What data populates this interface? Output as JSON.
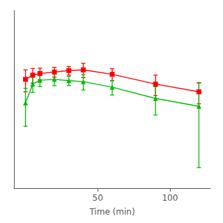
{
  "chart_data": {
    "type": "line",
    "xlabel": "Time (min)",
    "x": [
      0,
      5,
      10,
      20,
      30,
      40,
      60,
      90,
      120
    ],
    "series": [
      {
        "color": "#ff0000",
        "marker": "square",
        "values": [
          4.5,
          5.0,
          5.2,
          5.4,
          5.6,
          5.7,
          5.1,
          4.0,
          3.3
        ],
        "errors": [
          1.2,
          0.9,
          0.75,
          0.65,
          0.6,
          1.0,
          0.75,
          1.0,
          0.85
        ]
      },
      {
        "color": "#00bb00",
        "marker": "triangle",
        "values": [
          2.5,
          4.0,
          4.4,
          4.5,
          4.35,
          4.25,
          3.7,
          2.8,
          2.3
        ],
        "errors": [
          1.1,
          0.75,
          0.65,
          0.65,
          0.5,
          0.8,
          0.65,
          0.95,
          1.8
        ]
      }
    ],
    "xlim": [
      -8,
      128
    ],
    "xticks": [
      50,
      100
    ],
    "ylim": [
      0.3,
      25
    ],
    "log": "y",
    "tick_labels": "x",
    "grid": false
  }
}
